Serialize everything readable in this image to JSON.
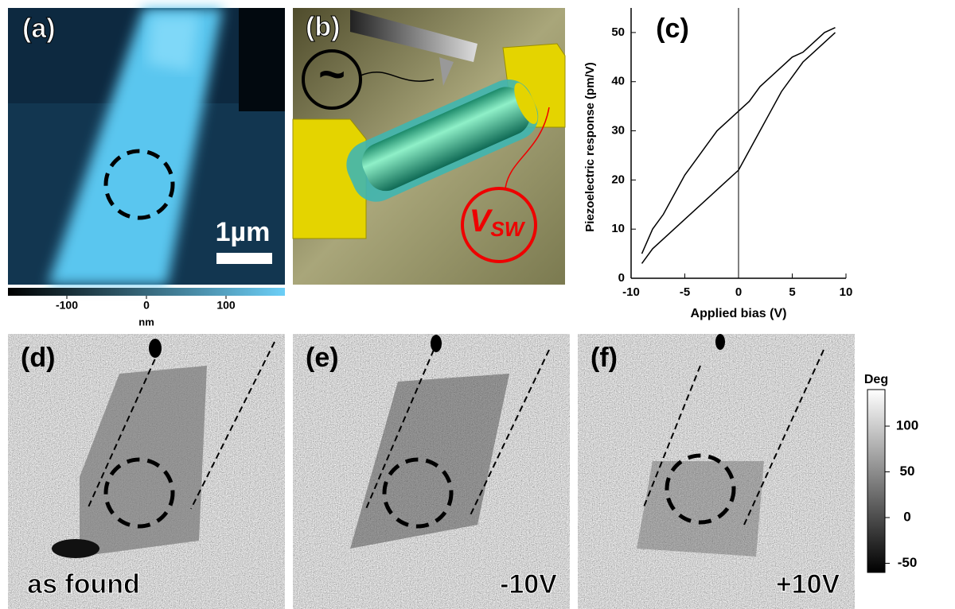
{
  "panels": {
    "a": {
      "label": "(a)",
      "scale_bar": "1µm"
    },
    "b": {
      "label": "(b)",
      "symbol": "~",
      "voltage": {
        "main": "V",
        "sub": "SW"
      }
    },
    "d": {
      "label": "(d)",
      "caption": "as found"
    },
    "e": {
      "label": "(e)",
      "caption": "-10V"
    },
    "f": {
      "label": "(f)",
      "caption": "+10V"
    }
  },
  "colorbar_height": {
    "label": "nm",
    "lim": [
      -174,
      174
    ],
    "ticks": [
      -100,
      0,
      100
    ]
  },
  "colorbar_phase": {
    "label": "Deg",
    "lim": [
      -60,
      140
    ],
    "ticks": [
      -50,
      0,
      50,
      100
    ]
  },
  "chart_data": {
    "type": "line",
    "title": "(c)",
    "x_label": "Applied bias (V)",
    "y_label": "Piezoelectric response (pm/V)",
    "x": [
      -9,
      -8,
      -7,
      -6,
      -5,
      -4,
      -3,
      -2,
      -1,
      0,
      1,
      2,
      3,
      4,
      5,
      6,
      7,
      8,
      9
    ],
    "series": [
      {
        "color": "#000000",
        "values": [
          5,
          10,
          13,
          17,
          21,
          24,
          27,
          30,
          32,
          34,
          36,
          39,
          41,
          43,
          45,
          46,
          48,
          50,
          51
        ]
      },
      {
        "color": "#000000",
        "values": [
          3,
          6,
          8,
          10,
          12,
          14,
          16,
          18,
          20,
          22,
          26,
          30,
          34,
          38,
          41,
          44,
          46,
          48,
          50
        ]
      }
    ],
    "xlim": [
      -10,
      10
    ],
    "ylim": [
      0,
      55
    ],
    "xticks": [
      -10,
      -5,
      0,
      5,
      10
    ],
    "yticks": [
      0,
      10,
      20,
      30,
      40,
      50
    ]
  }
}
